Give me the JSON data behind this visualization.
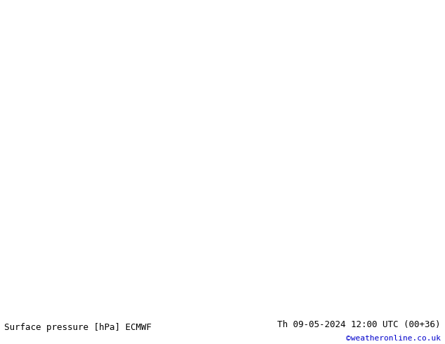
{
  "title_left": "Surface pressure [hPa] ECMWF",
  "title_right": "Th 09-05-2024 12:00 UTC (00+36)",
  "copyright": "©weatheronline.co.uk",
  "bg_color": "#d8d8d8",
  "land_color": "#c8e8a0",
  "ocean_color": "#e8e8e8",
  "contour_black_color": "#000000",
  "contour_blue_color": "#0000cc",
  "contour_red_color": "#cc0000",
  "label_black_fontsize": 7,
  "label_blue_fontsize": 7,
  "label_red_fontsize": 7,
  "footer_fontsize": 9,
  "copyright_color": "#0000cc",
  "map_extent": [
    -20,
    55,
    -40,
    40
  ],
  "figsize": [
    6.34,
    4.9
  ],
  "dpi": 100
}
